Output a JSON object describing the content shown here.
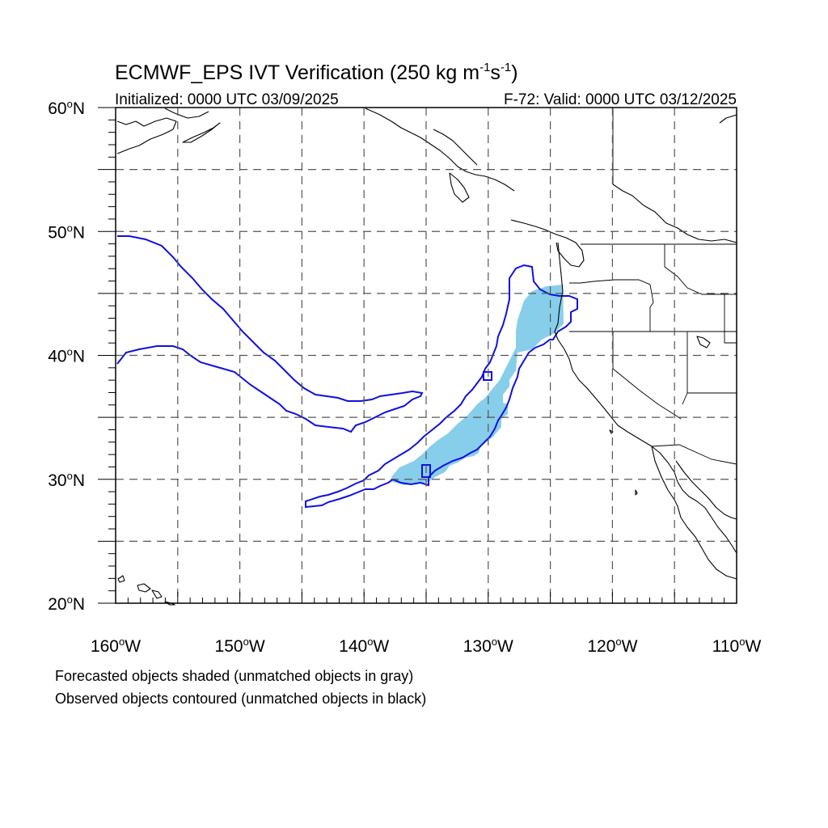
{
  "title": {
    "main_prefix": "ECMWF_EPS IVT Verification (250 kg m",
    "sup1": "-1",
    "mid": "s",
    "sup2": "-1",
    "suffix": ")"
  },
  "subtitle_left": "Initialized: 0000 UTC 03/09/2025",
  "subtitle_right": "F-72: Valid: 0000 UTC 03/12/2025",
  "map": {
    "lon_range": [
      -160,
      -110
    ],
    "lat_range": [
      20,
      60
    ],
    "lon_ticks": [
      {
        "value": -160,
        "label": "160",
        "hemi": "W"
      },
      {
        "value": -150,
        "label": "150",
        "hemi": "W"
      },
      {
        "value": -140,
        "label": "140",
        "hemi": "W"
      },
      {
        "value": -130,
        "label": "130",
        "hemi": "W"
      },
      {
        "value": -120,
        "label": "120",
        "hemi": "W"
      },
      {
        "value": -110,
        "label": "110",
        "hemi": "W"
      }
    ],
    "lat_ticks": [
      {
        "value": 60,
        "label": "60",
        "hemi": "N"
      },
      {
        "value": 50,
        "label": "50",
        "hemi": "N"
      },
      {
        "value": 40,
        "label": "40",
        "hemi": "N"
      },
      {
        "value": 30,
        "label": "30",
        "hemi": "N"
      },
      {
        "value": 20,
        "label": "20",
        "hemi": "N"
      }
    ],
    "forecast_color": "#87ceea",
    "observed_color": "#1010e0"
  },
  "legend": {
    "line1": "Forecasted objects shaded (unmatched objects in gray)",
    "line2": "Observed objects contoured (unmatched objects in black)"
  }
}
